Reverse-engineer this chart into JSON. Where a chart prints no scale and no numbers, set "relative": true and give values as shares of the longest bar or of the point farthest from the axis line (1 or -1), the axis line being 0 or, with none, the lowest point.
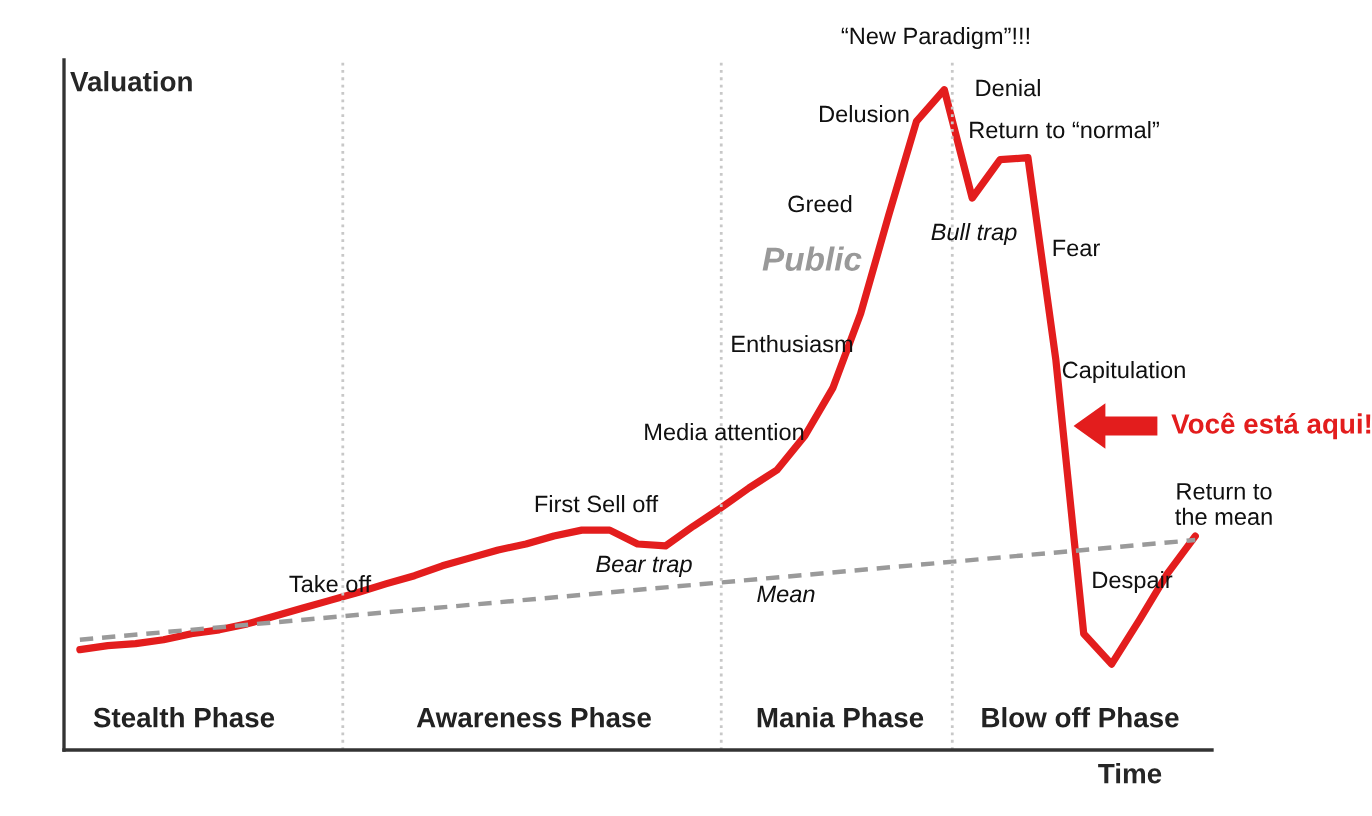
{
  "chart_data": {
    "type": "line",
    "relative": true,
    "xlabel": "Time",
    "ylabel": "Valuation",
    "categories": [
      null,
      null,
      null,
      null,
      null,
      null,
      null,
      null,
      null,
      null,
      null,
      null,
      null,
      null,
      null,
      null,
      null,
      null,
      null,
      null,
      null,
      null,
      null,
      null,
      null,
      null,
      null,
      null,
      null,
      null,
      null,
      null,
      null,
      null,
      null,
      null,
      null,
      null,
      null,
      null,
      null
    ],
    "series": [
      {
        "color": "#e31d1d",
        "values": [
          0.152,
          0.158,
          0.161,
          0.167,
          0.176,
          0.182,
          0.191,
          0.203,
          0.215,
          0.227,
          0.239,
          0.252,
          0.264,
          0.279,
          0.291,
          0.303,
          0.312,
          0.324,
          0.333,
          0.333,
          0.312,
          0.309,
          0.339,
          0.367,
          0.397,
          0.424,
          0.476,
          0.548,
          0.661,
          0.809,
          0.952,
          1.0,
          0.836,
          0.894,
          0.897,
          0.591,
          0.176,
          0.13,
          0.197,
          0.267,
          0.324
        ]
      },
      {
        "color": "#9a9a9a",
        "line_style": "dashed",
        "values": [
          0.167,
          null,
          null,
          null,
          null,
          null,
          null,
          null,
          null,
          null,
          null,
          null,
          null,
          null,
          null,
          null,
          null,
          null,
          null,
          null,
          null,
          null,
          null,
          null,
          null,
          null,
          null,
          null,
          null,
          null,
          null,
          null,
          null,
          null,
          null,
          null,
          null,
          null,
          null,
          null,
          0.318
        ]
      }
    ],
    "annotations": [
      "Stealth Phase",
      "Awareness Phase",
      "Mania Phase",
      "Blow off Phase",
      "Take off",
      "First Sell off",
      "Bear trap",
      "Mean",
      "Media attention",
      "Enthusiasm",
      "Greed",
      "Public",
      "Delusion",
      "“New Paradigm”!!!",
      "Denial",
      "Return to “normal”",
      "Bull trap",
      "Fear",
      "Capitulation",
      "Você está aqui!",
      "Return to\nthe mean",
      "Despair"
    ]
  }
}
